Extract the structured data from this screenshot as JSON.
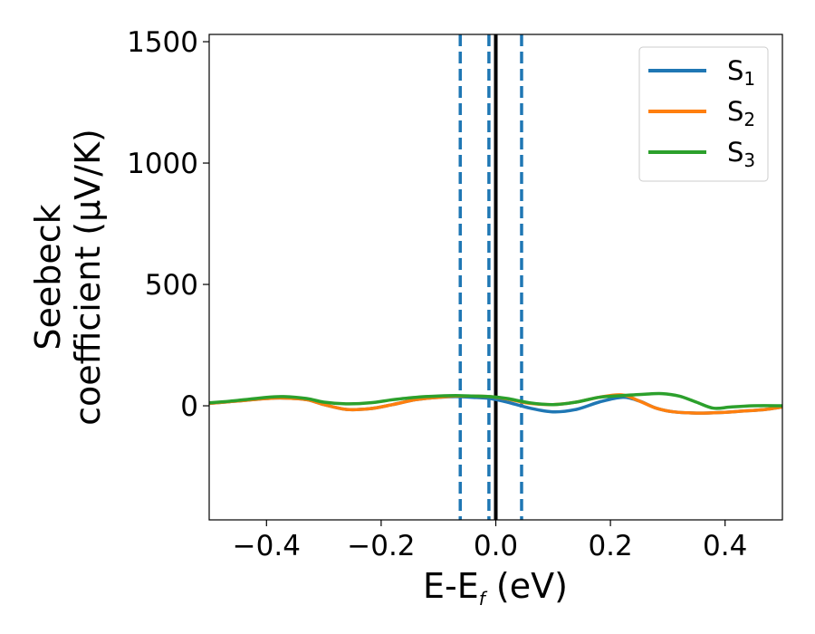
{
  "chart_data": {
    "type": "line",
    "xlabel": "E-E_f (eV)",
    "xlabel_main": "E-E",
    "xlabel_sub": "f",
    "xlabel_unit": " (eV)",
    "ylabel_line1": "Seebeck",
    "ylabel_line2": "coefficient  (μV/K)",
    "xlim": [
      -0.5,
      0.5
    ],
    "ylim": [
      -470,
      1530
    ],
    "xticks": [
      -0.4,
      -0.2,
      0.0,
      0.2,
      0.4
    ],
    "xtick_labels": [
      "−0.4",
      "−0.2",
      "0.0",
      "0.2",
      "0.4"
    ],
    "yticks": [
      0,
      500,
      1000,
      1500
    ],
    "ytick_labels": [
      "0",
      "500",
      "1000",
      "1500"
    ],
    "legend_position": "top-right",
    "series": [
      {
        "name": "S1",
        "name_main": "S",
        "name_sub": "1",
        "color": "#1f77b4",
        "x": [
          -0.5,
          -0.45,
          -0.4,
          -0.37,
          -0.33,
          -0.3,
          -0.26,
          -0.22,
          -0.18,
          -0.14,
          -0.1,
          -0.07,
          -0.04,
          -0.01,
          0.02,
          0.06,
          0.1,
          0.14,
          0.18,
          0.22,
          0.25,
          0.28,
          0.31,
          0.35,
          0.39,
          0.43,
          0.47,
          0.5
        ],
        "y": [
          10,
          20,
          30,
          32,
          25,
          5,
          -15,
          -12,
          5,
          25,
          35,
          38,
          35,
          30,
          15,
          -10,
          -25,
          -15,
          15,
          35,
          20,
          -10,
          -25,
          -30,
          -28,
          -22,
          -15,
          -5
        ]
      },
      {
        "name": "S2",
        "name_main": "S",
        "name_sub": "2",
        "color": "#ff7f0e",
        "x": [
          -0.5,
          -0.45,
          -0.4,
          -0.37,
          -0.33,
          -0.3,
          -0.26,
          -0.22,
          -0.18,
          -0.14,
          -0.1,
          -0.07,
          -0.04,
          -0.01,
          0.02,
          0.06,
          0.1,
          0.14,
          0.18,
          0.22,
          0.25,
          0.28,
          0.31,
          0.35,
          0.39,
          0.43,
          0.47,
          0.5
        ],
        "y": [
          10,
          20,
          30,
          32,
          25,
          5,
          -15,
          -12,
          5,
          25,
          35,
          40,
          40,
          38,
          28,
          10,
          5,
          15,
          35,
          45,
          20,
          -10,
          -25,
          -30,
          -28,
          -22,
          -15,
          -5
        ]
      },
      {
        "name": "S3",
        "name_main": "S",
        "name_sub": "3",
        "color": "#2ca02c",
        "x": [
          -0.5,
          -0.45,
          -0.4,
          -0.37,
          -0.33,
          -0.3,
          -0.26,
          -0.22,
          -0.18,
          -0.14,
          -0.1,
          -0.07,
          -0.04,
          -0.01,
          0.02,
          0.06,
          0.1,
          0.14,
          0.18,
          0.22,
          0.26,
          0.29,
          0.32,
          0.35,
          0.38,
          0.41,
          0.45,
          0.5
        ],
        "y": [
          12,
          22,
          35,
          38,
          30,
          15,
          8,
          12,
          25,
          35,
          40,
          42,
          40,
          38,
          30,
          12,
          5,
          15,
          35,
          42,
          48,
          50,
          40,
          15,
          -10,
          -5,
          0,
          0
        ]
      }
    ],
    "vlines": [
      {
        "x": -0.062,
        "style": "dashed",
        "color": "#1f77b4"
      },
      {
        "x": -0.012,
        "style": "dashed",
        "color": "#1f77b4"
      },
      {
        "x": 0.045,
        "style": "dashed",
        "color": "#1f77b4"
      },
      {
        "x": 0.0,
        "style": "solid",
        "color": "#000000"
      }
    ]
  }
}
